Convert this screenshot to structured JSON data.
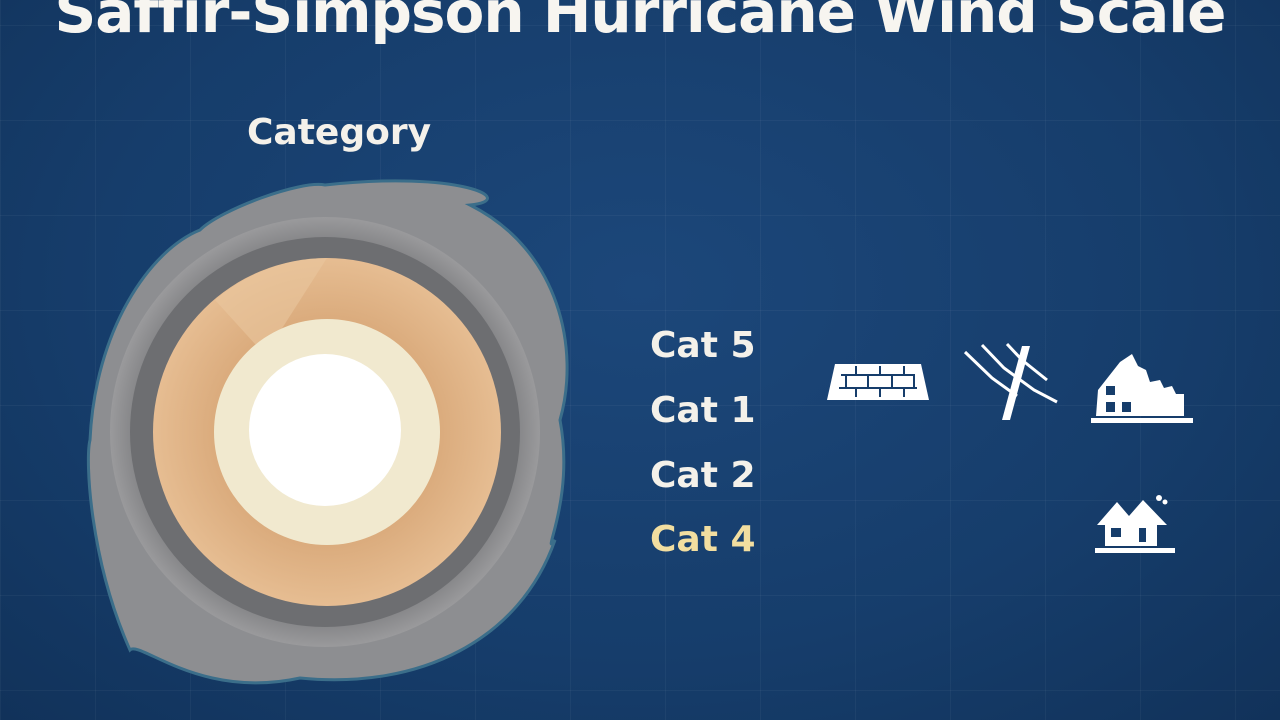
{
  "title": "Saffir-Simpson Hurricane Wind Scale",
  "category_heading": "Category",
  "categories": [
    {
      "label": "Cat 5",
      "color": "#f4f1ea"
    },
    {
      "label": "Cat 1",
      "color": "#f4f1ea"
    },
    {
      "label": "Cat 2",
      "color": "#f4f1ea"
    },
    {
      "label": "Cat 4",
      "color": "#f2dea0"
    }
  ],
  "icons": [
    "roof-tiles-icon",
    "broken-tree-icon",
    "damaged-house-icon",
    "damaged-small-house-icon"
  ],
  "colors": {
    "background": "#173f6e",
    "outer": "#8e8e90",
    "ring_tan": "#e2b78a",
    "ring_cream": "#f3ecd6",
    "center": "#ffffff"
  }
}
